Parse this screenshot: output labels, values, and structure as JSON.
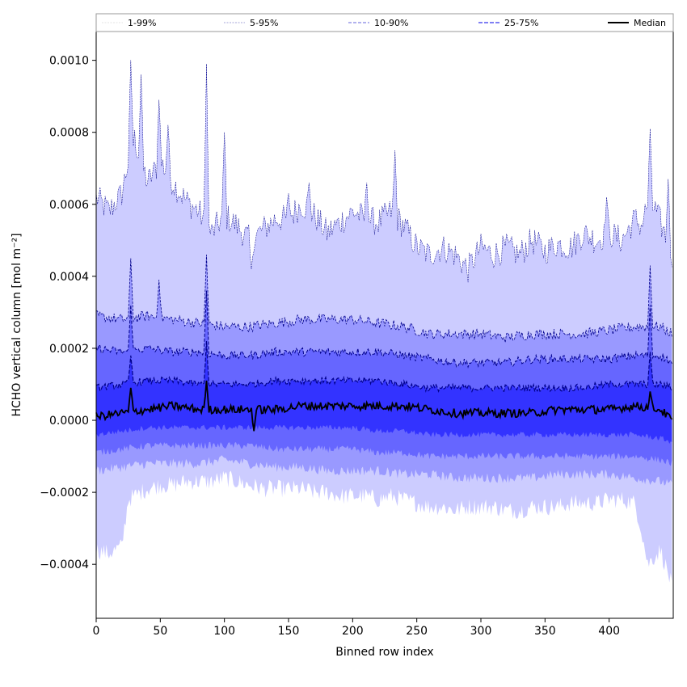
{
  "chart_data": {
    "type": "area",
    "xlabel": "Binned row index",
    "ylabel": "HCHO vertical column [mol m⁻²]",
    "xlim": [
      0,
      450
    ],
    "ylim": [
      -0.00055,
      0.00108
    ],
    "x_ticks": [
      0,
      50,
      100,
      150,
      200,
      250,
      300,
      350,
      400
    ],
    "x_tick_labels": [
      "0",
      "50",
      "100",
      "150",
      "200",
      "250",
      "300",
      "350",
      "400"
    ],
    "y_ticks": [
      -0.0004,
      -0.0002,
      0.0,
      0.0002,
      0.0004,
      0.0006,
      0.0008,
      0.001
    ],
    "y_tick_labels": [
      "−0.0004",
      "−0.0002",
      "0.0000",
      "0.0002",
      "0.0004",
      "0.0006",
      "0.0008",
      "0.0010"
    ],
    "grid": false,
    "legend_position": "top",
    "colors": {
      "band_1_99": "#ccccff",
      "band_5_95": "#9999ff",
      "band_10_90": "#6666ff",
      "band_25_75": "#3333ff",
      "percentile_line": "#00008b",
      "median": "#000000"
    },
    "series": [
      {
        "name": "1-99%",
        "knots_x": [
          0,
          10,
          20,
          25,
          30,
          40,
          50,
          60,
          70,
          80,
          90,
          100,
          110,
          120,
          130,
          140,
          150,
          160,
          170,
          180,
          190,
          200,
          210,
          220,
          230,
          240,
          250,
          260,
          270,
          280,
          290,
          300,
          310,
          320,
          330,
          340,
          350,
          360,
          370,
          380,
          390,
          400,
          410,
          420,
          425,
          430,
          435,
          440,
          449
        ],
        "upper": [
          0.00062,
          0.00058,
          0.00063,
          0.00072,
          0.00078,
          0.00066,
          0.00072,
          0.00066,
          0.00061,
          0.00058,
          0.00052,
          0.00057,
          0.00054,
          0.0005,
          0.00053,
          0.00056,
          0.00056,
          0.0006,
          0.00057,
          0.00052,
          0.00055,
          0.00058,
          0.00056,
          0.00055,
          0.00058,
          0.00054,
          0.00048,
          0.00046,
          0.00048,
          0.00046,
          0.00042,
          0.00048,
          0.00046,
          0.00048,
          0.00046,
          0.0005,
          0.00047,
          0.00049,
          0.00048,
          0.00052,
          0.0005,
          0.00052,
          0.0005,
          0.00056,
          0.00054,
          0.0006,
          0.00059,
          0.00055,
          0.00046
        ],
        "lower": [
          -0.00036,
          -0.00037,
          -0.00035,
          -0.00022,
          -0.00021,
          -0.00019,
          -0.00018,
          -0.00018,
          -0.00017,
          -0.00017,
          -0.00017,
          -0.00016,
          -0.00017,
          -0.00018,
          -0.00019,
          -0.00019,
          -0.00019,
          -0.00019,
          -0.0002,
          -0.0002,
          -0.00021,
          -0.00021,
          -0.00021,
          -0.00022,
          -0.00021,
          -0.00022,
          -0.00023,
          -0.00024,
          -0.00024,
          -0.00025,
          -0.00024,
          -0.00024,
          -0.00024,
          -0.00025,
          -0.00025,
          -0.00024,
          -0.00024,
          -0.00024,
          -0.00023,
          -0.00023,
          -0.00023,
          -0.00022,
          -0.00022,
          -0.00023,
          -0.0003,
          -0.0004,
          -0.00038,
          -0.00036,
          -0.00046
        ],
        "spikes": [
          [
            27,
            0.001
          ],
          [
            35,
            0.00096
          ],
          [
            49,
            0.00089
          ],
          [
            56,
            0.00082
          ],
          [
            86,
            0.00099
          ],
          [
            100,
            0.0008
          ],
          [
            121,
            0.00042
          ],
          [
            150,
            0.00063
          ],
          [
            166,
            0.00066
          ],
          [
            211,
            0.00066
          ],
          [
            233,
            0.00075
          ],
          [
            398,
            0.00062
          ],
          [
            432,
            0.00081
          ],
          [
            446,
            0.00067
          ]
        ]
      },
      {
        "name": "5-95%",
        "knots_x": [
          0,
          20,
          40,
          60,
          80,
          100,
          120,
          140,
          160,
          180,
          200,
          220,
          240,
          260,
          280,
          300,
          320,
          340,
          360,
          380,
          400,
          420,
          440,
          449
        ],
        "upper": [
          0.00029,
          0.00028,
          0.00029,
          0.00028,
          0.00027,
          0.00026,
          0.00026,
          0.00027,
          0.00028,
          0.00028,
          0.00028,
          0.00027,
          0.00026,
          0.00024,
          0.00024,
          0.00024,
          0.00023,
          0.00024,
          0.00024,
          0.00024,
          0.00025,
          0.00026,
          0.00026,
          0.00024
        ],
        "lower": [
          -0.00014,
          -0.00013,
          -0.00012,
          -0.00012,
          -0.00012,
          -0.00011,
          -0.00012,
          -0.00013,
          -0.00013,
          -0.00014,
          -0.00014,
          -0.00014,
          -0.00015,
          -0.00015,
          -0.00016,
          -0.00016,
          -0.00016,
          -0.00016,
          -0.00015,
          -0.00015,
          -0.00015,
          -0.00016,
          -0.00017,
          -0.00018
        ],
        "spikes": [
          [
            27,
            0.00045
          ],
          [
            49,
            0.00039
          ],
          [
            86,
            0.00046
          ],
          [
            432,
            0.00043
          ]
        ]
      },
      {
        "name": "10-90%",
        "knots_x": [
          0,
          20,
          40,
          60,
          80,
          100,
          120,
          140,
          160,
          180,
          200,
          220,
          240,
          260,
          280,
          300,
          320,
          340,
          360,
          380,
          400,
          420,
          440,
          449
        ],
        "upper": [
          0.0002,
          0.00019,
          0.0002,
          0.00019,
          0.00019,
          0.00018,
          0.00018,
          0.00019,
          0.00019,
          0.00019,
          0.00019,
          0.00019,
          0.00018,
          0.00017,
          0.00016,
          0.00016,
          0.00016,
          0.00017,
          0.00017,
          0.00017,
          0.00017,
          0.00018,
          0.00018,
          0.00016
        ],
        "lower": [
          -9e-05,
          -8e-05,
          -7e-05,
          -7e-05,
          -7e-05,
          -7e-05,
          -7e-05,
          -8e-05,
          -8e-05,
          -8e-05,
          -8e-05,
          -9e-05,
          -9e-05,
          -0.0001,
          -0.0001,
          -0.0001,
          -0.0001,
          -0.0001,
          -0.0001,
          -0.0001,
          -0.0001,
          -0.0001,
          -0.00011,
          -0.00012
        ],
        "spikes": [
          [
            27,
            0.00032
          ],
          [
            86,
            0.00036
          ],
          [
            432,
            0.00032
          ]
        ]
      },
      {
        "name": "25-75%",
        "knots_x": [
          0,
          20,
          40,
          60,
          80,
          100,
          120,
          140,
          160,
          180,
          200,
          220,
          240,
          260,
          280,
          300,
          320,
          340,
          360,
          380,
          400,
          420,
          440,
          449
        ],
        "upper": [
          9e-05,
          0.0001,
          0.00011,
          0.00011,
          0.0001,
          0.0001,
          0.0001,
          0.00011,
          0.00011,
          0.00011,
          0.00011,
          0.00011,
          0.0001,
          9e-05,
          9e-05,
          9e-05,
          9e-05,
          9e-05,
          9e-05,
          9e-05,
          0.0001,
          0.0001,
          0.0001,
          9e-05
        ],
        "lower": [
          -4e-05,
          -3e-05,
          -2e-05,
          -2e-05,
          -2e-05,
          -2e-05,
          -2e-05,
          -2e-05,
          -2e-05,
          -2e-05,
          -2e-05,
          -3e-05,
          -3e-05,
          -4e-05,
          -4e-05,
          -4e-05,
          -4e-05,
          -4e-05,
          -4e-05,
          -4e-05,
          -4e-05,
          -4e-05,
          -5e-05,
          -6e-05
        ],
        "spikes": [
          [
            27,
            0.00018
          ],
          [
            86,
            0.00022
          ],
          [
            432,
            0.00019
          ]
        ]
      },
      {
        "name": "Median",
        "knots_x": [
          0,
          20,
          40,
          60,
          80,
          100,
          120,
          140,
          160,
          180,
          200,
          220,
          240,
          260,
          280,
          300,
          320,
          340,
          360,
          380,
          400,
          420,
          440,
          449
        ],
        "values": [
          1e-05,
          2e-05,
          3e-05,
          4e-05,
          3e-05,
          3e-05,
          3e-05,
          3e-05,
          4e-05,
          4e-05,
          4e-05,
          4e-05,
          4e-05,
          3e-05,
          2e-05,
          2e-05,
          2e-05,
          2e-05,
          3e-05,
          3e-05,
          3e-05,
          4e-05,
          3e-05,
          0.0
        ],
        "spikes": [
          [
            27,
            9e-05
          ],
          [
            86,
            0.00011
          ],
          [
            123,
            -3e-05
          ],
          [
            432,
            8e-05
          ]
        ]
      }
    ]
  }
}
